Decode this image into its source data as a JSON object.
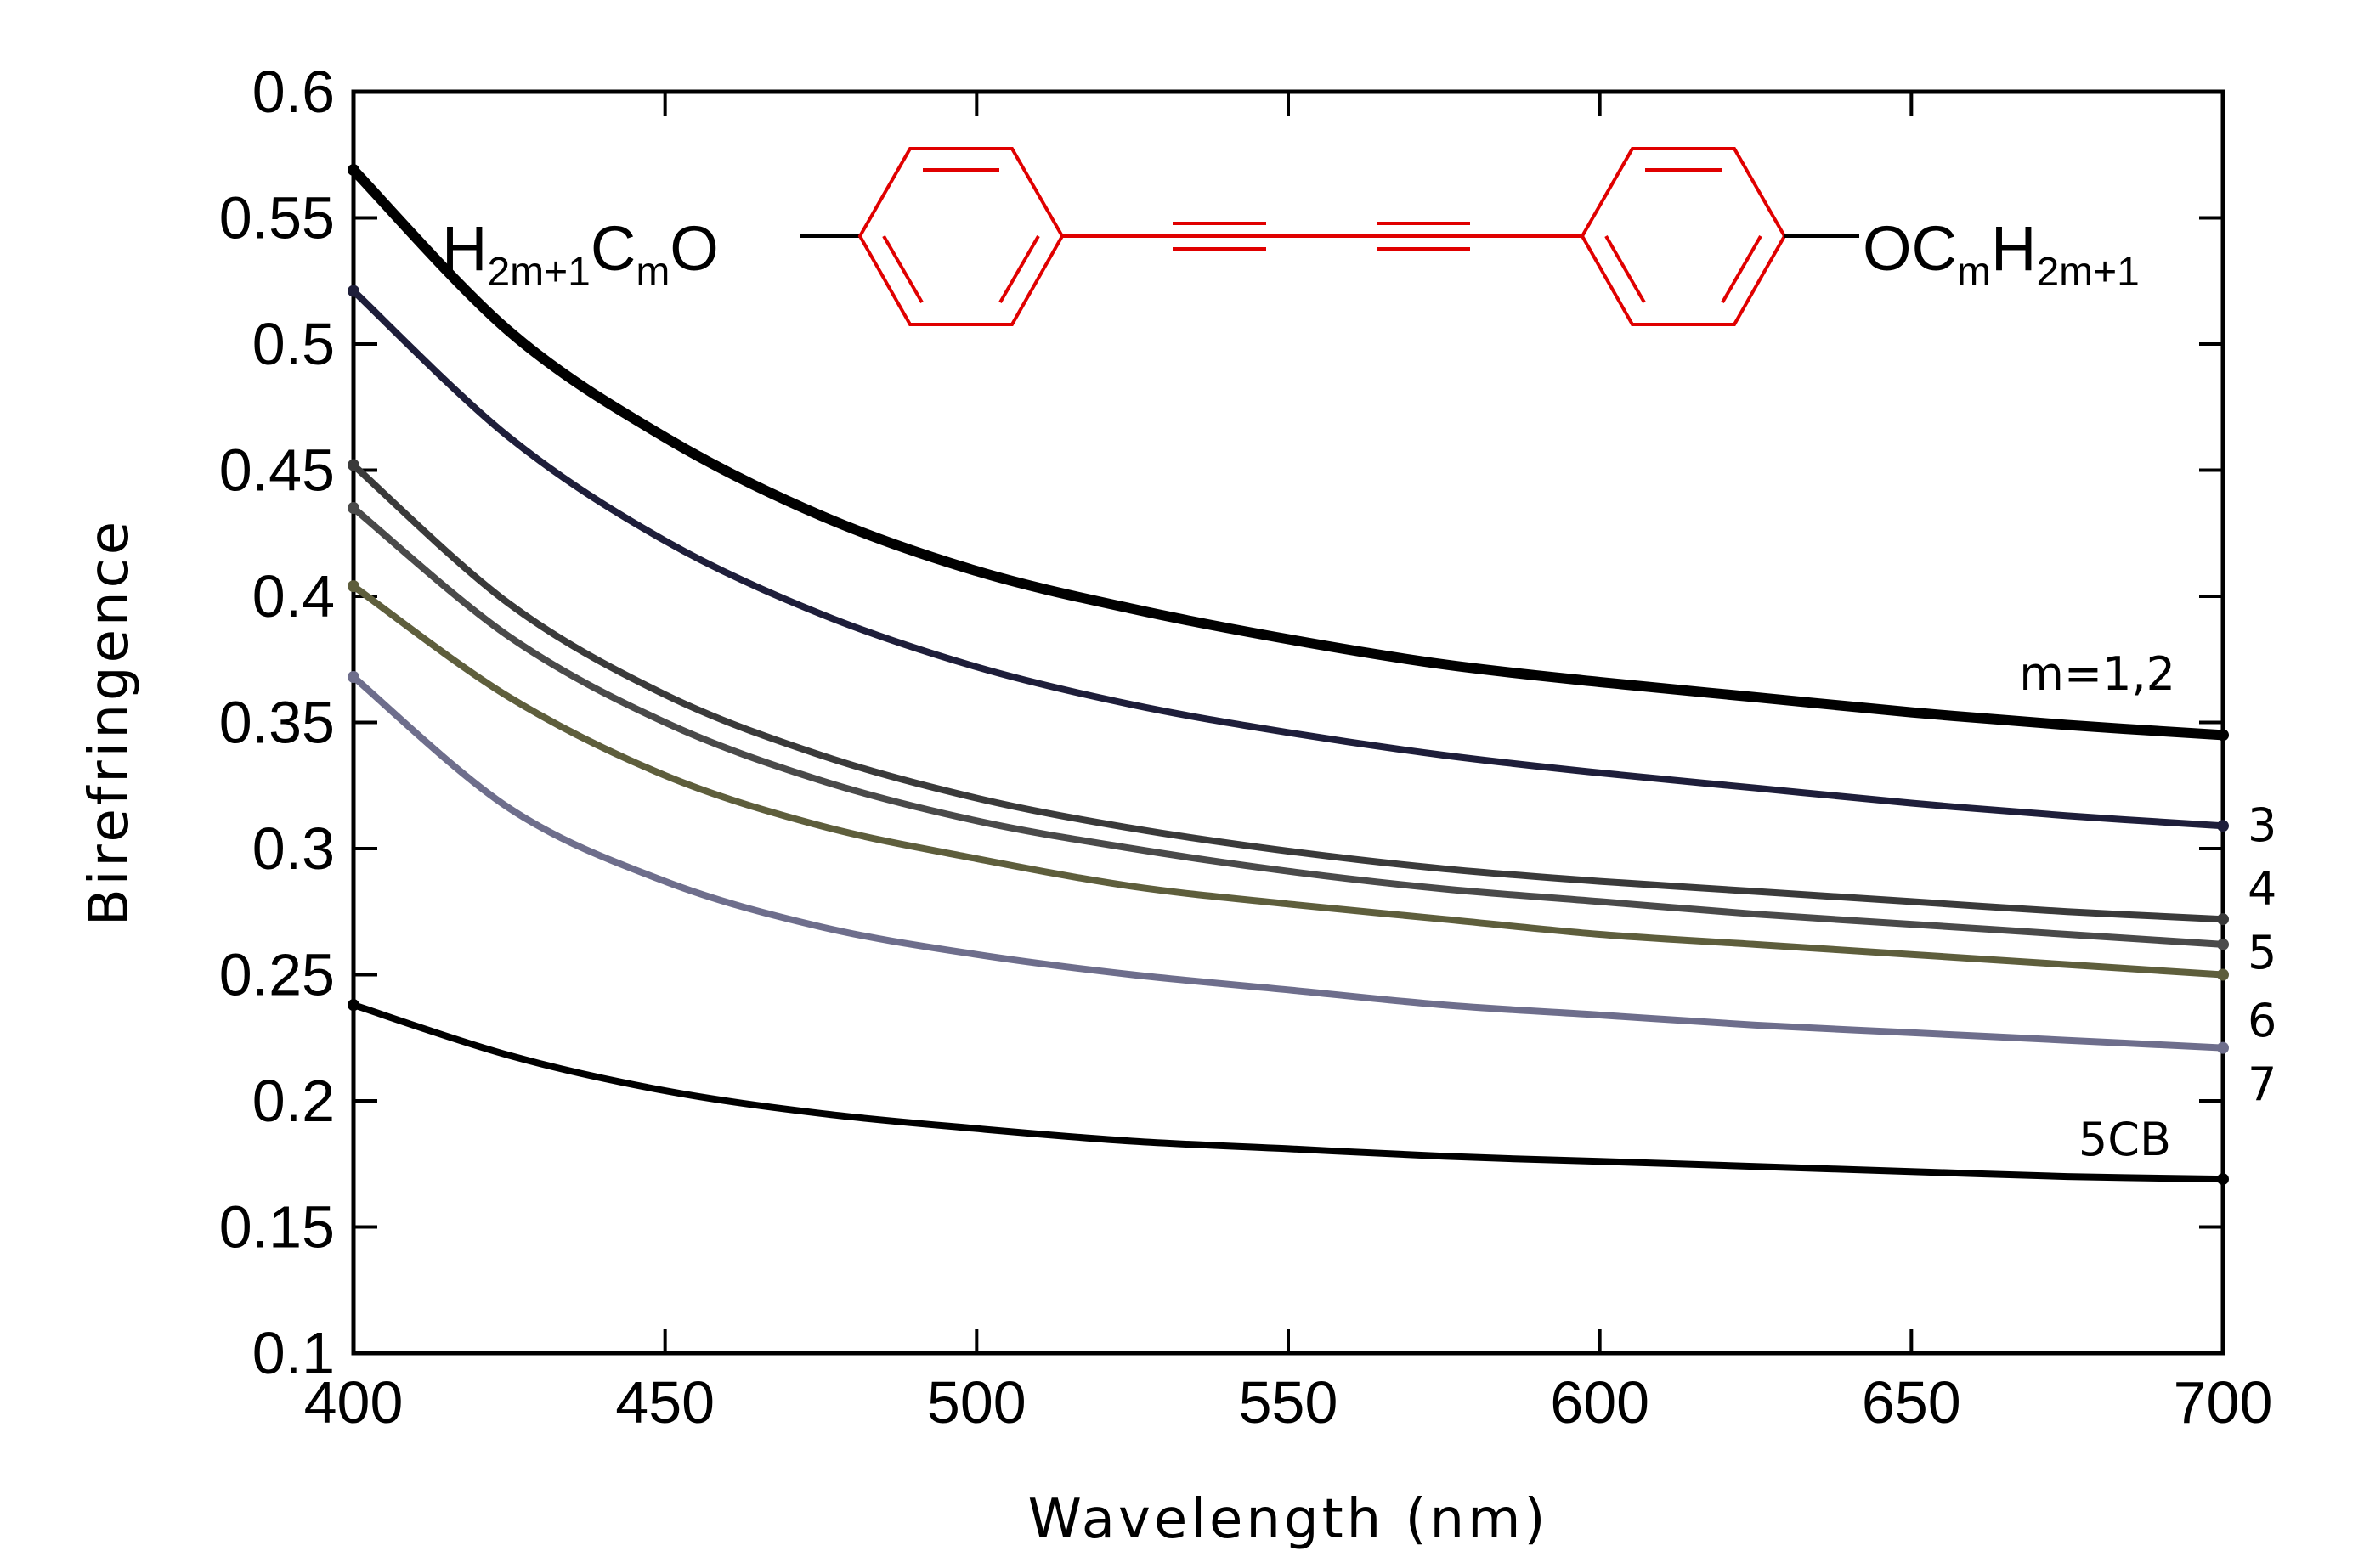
{
  "chart_data": {
    "type": "line",
    "xlabel": "Wavelength (nm)",
    "ylabel": "Birefringence",
    "xlim": [
      400,
      700
    ],
    "ylim": [
      0.1,
      0.6
    ],
    "xticks": [
      400,
      450,
      500,
      550,
      600,
      650,
      700
    ],
    "yticks": [
      0.1,
      0.15,
      0.2,
      0.25,
      0.3,
      0.35,
      0.4,
      0.45,
      0.5,
      0.55,
      0.6
    ],
    "xtick_labels": [
      "400",
      "450",
      "500",
      "550",
      "600",
      "650",
      "700"
    ],
    "ytick_labels": [
      "0.1",
      "0.15",
      "0.2",
      "0.25",
      "0.3",
      "0.35",
      "0.4",
      "0.45",
      "0.5",
      "0.55",
      "0.6"
    ],
    "grid": false,
    "x": [
      400,
      425,
      450,
      475,
      500,
      525,
      550,
      575,
      600,
      625,
      650,
      675,
      700
    ],
    "series": [
      {
        "name": "m=1,2",
        "color": "#000000",
        "values": [
          0.569,
          0.505,
          0.463,
          0.432,
          0.41,
          0.395,
          0.383,
          0.373,
          0.366,
          0.36,
          0.354,
          0.349,
          0.345
        ]
      },
      {
        "name": "3",
        "color": "#1e1e3a",
        "values": [
          0.521,
          0.463,
          0.422,
          0.393,
          0.372,
          0.357,
          0.346,
          0.337,
          0.33,
          0.324,
          0.318,
          0.313,
          0.309
        ]
      },
      {
        "name": "4",
        "color": "#3a3a3a",
        "values": [
          0.452,
          0.397,
          0.361,
          0.337,
          0.32,
          0.308,
          0.299,
          0.292,
          0.287,
          0.283,
          0.279,
          0.275,
          0.272
        ]
      },
      {
        "name": "5",
        "color": "#4a4a4a",
        "values": [
          0.435,
          0.384,
          0.35,
          0.327,
          0.311,
          0.3,
          0.291,
          0.284,
          0.279,
          0.274,
          0.27,
          0.266,
          0.262
        ]
      },
      {
        "name": "6",
        "color": "#5e5e3c",
        "values": [
          0.404,
          0.36,
          0.329,
          0.309,
          0.296,
          0.285,
          0.278,
          0.272,
          0.266,
          0.262,
          0.258,
          0.254,
          0.25
        ]
      },
      {
        "name": "7",
        "color": "#6e6e8c",
        "values": [
          0.368,
          0.316,
          0.287,
          0.269,
          0.258,
          0.25,
          0.244,
          0.238,
          0.234,
          0.23,
          0.227,
          0.224,
          0.221
        ]
      },
      {
        "name": "5CB",
        "color": "#000000",
        "values": [
          0.238,
          0.218,
          0.204,
          0.195,
          0.189,
          0.184,
          0.181,
          0.178,
          0.176,
          0.174,
          0.172,
          0.17,
          0.169
        ]
      }
    ],
    "annotations": {
      "left_group": "H2m+1CmO",
      "right_group": "OCmH2m+1",
      "structure_color": "#e00000"
    }
  }
}
